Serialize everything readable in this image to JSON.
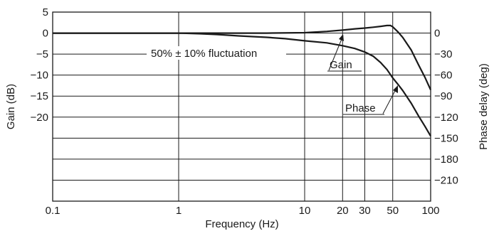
{
  "chart_data": {
    "type": "line",
    "xlabel": "Frequency (Hz)",
    "ylabel": "Gain (dB)",
    "y2label": "Phase delay (deg)",
    "xscale": "log",
    "xlim": [
      0.1,
      100
    ],
    "ylim": [
      -40,
      5
    ],
    "y2lim": [
      -240,
      30
    ],
    "grid": true,
    "x_ticks": [
      0.1,
      1,
      10,
      20,
      30,
      50,
      100
    ],
    "x_tick_labels": [
      "0.1",
      "1",
      "10",
      "20",
      "30",
      "50",
      "100"
    ],
    "y_ticks": [
      5,
      0,
      -5,
      -10,
      -15,
      -20
    ],
    "y_tick_labels": [
      "5",
      "0",
      "−5",
      "−10",
      "−15",
      "−20"
    ],
    "y2_ticks": [
      0,
      -30,
      -60,
      -90,
      -120,
      -150,
      -180,
      -210
    ],
    "y2_tick_labels": [
      "0",
      "−30",
      "−60",
      "−90",
      "−120",
      "−150",
      "−180",
      "−210"
    ],
    "series": [
      {
        "name": "Gain",
        "axis": "left",
        "x": [
          0.1,
          1,
          2,
          5,
          10,
          15,
          20,
          25,
          30,
          35,
          40,
          45,
          48,
          50,
          55,
          60,
          70,
          80,
          90,
          100
        ],
        "y": [
          0,
          0,
          0,
          0,
          0.1,
          0.4,
          0.7,
          1.0,
          1.2,
          1.4,
          1.6,
          1.8,
          1.8,
          1.5,
          0.3,
          -1.0,
          -4.0,
          -7.5,
          -10.5,
          -13.5
        ]
      },
      {
        "name": "Phase",
        "axis": "right",
        "x": [
          0.1,
          1,
          1.5,
          2,
          3,
          5,
          7,
          10,
          15,
          20,
          25,
          30,
          35,
          40,
          45,
          50,
          55,
          60,
          70,
          80,
          90,
          100
        ],
        "y": [
          0,
          0,
          -1,
          -2,
          -4,
          -6,
          -8,
          -11,
          -14,
          -18,
          -22,
          -27,
          -33,
          -42,
          -52,
          -64,
          -73,
          -82,
          -100,
          -118,
          -133,
          -147
        ]
      }
    ],
    "annotations": [
      {
        "text": "50% ± 10% fluctuation"
      },
      {
        "text": "Gain"
      },
      {
        "text": "Phase"
      }
    ]
  }
}
